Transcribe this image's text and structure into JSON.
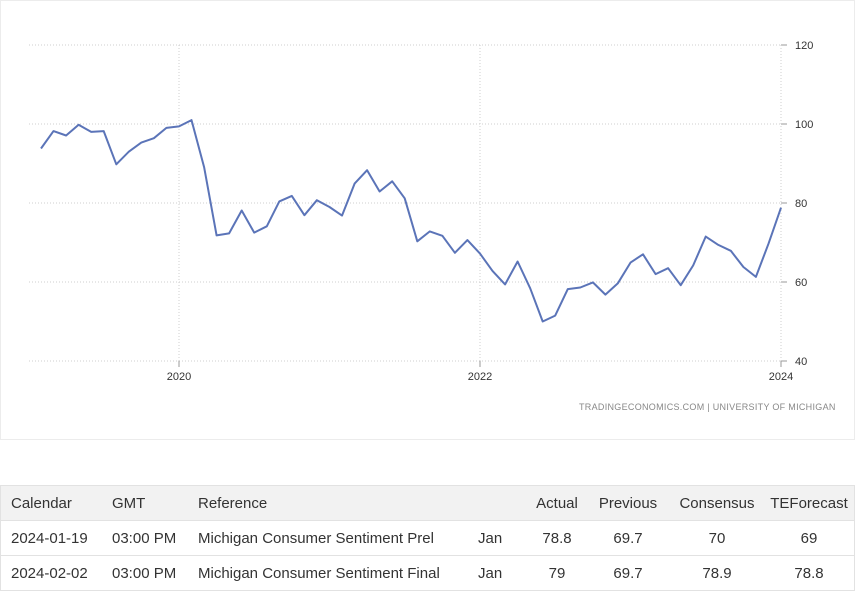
{
  "chart_data": {
    "type": "line",
    "x_start_year": 2019,
    "x_end_year": 2024,
    "x_ticks": [
      "2020",
      "2022",
      "2024"
    ],
    "y_ticks": [
      "40",
      "60",
      "80",
      "100",
      "120"
    ],
    "ylim": [
      40,
      120
    ],
    "grid": true,
    "y_axis_side": "right",
    "line_color": "#5b74b8",
    "series": [
      {
        "values": [
          93.8,
          98.2,
          97.1,
          99.8,
          98.0,
          98.2,
          89.8,
          93.0,
          95.3,
          96.4,
          99.0,
          99.4,
          101.0,
          89.1,
          71.8,
          72.3,
          78.1,
          72.5,
          74.1,
          80.4,
          81.8,
          76.9,
          80.7,
          79.0,
          76.8,
          84.9,
          88.3,
          82.9,
          85.5,
          81.2,
          70.3,
          72.8,
          71.7,
          67.4,
          70.6,
          67.2,
          62.8,
          59.4,
          65.2,
          58.4,
          50.0,
          51.5,
          58.2,
          58.6,
          59.9,
          56.8,
          59.7,
          64.9,
          67.0,
          62.0,
          63.5,
          59.2,
          64.2,
          71.5,
          69.4,
          67.9,
          63.8,
          61.3,
          69.7,
          78.8
        ]
      }
    ]
  },
  "source_text": "TRADINGECONOMICS.COM  |  UNIVERSITY OF MICHIGAN",
  "table": {
    "headers": {
      "calendar": "Calendar",
      "gmt": "GMT",
      "reference": "Reference",
      "actual": "Actual",
      "previous": "Previous",
      "consensus": "Consensus",
      "teforecast": "TEForecast"
    },
    "rows": [
      {
        "calendar": "2024-01-19",
        "gmt": "03:00 PM",
        "reference": "Michigan Consumer Sentiment Prel",
        "period": "Jan",
        "actual": "78.8",
        "previous": "69.7",
        "consensus": "70",
        "teforecast": "69"
      },
      {
        "calendar": "2024-02-02",
        "gmt": "03:00 PM",
        "reference": "Michigan Consumer Sentiment Final",
        "period": "Jan",
        "actual": "79",
        "previous": "69.7",
        "consensus": "78.9",
        "teforecast": "78.8"
      }
    ]
  }
}
